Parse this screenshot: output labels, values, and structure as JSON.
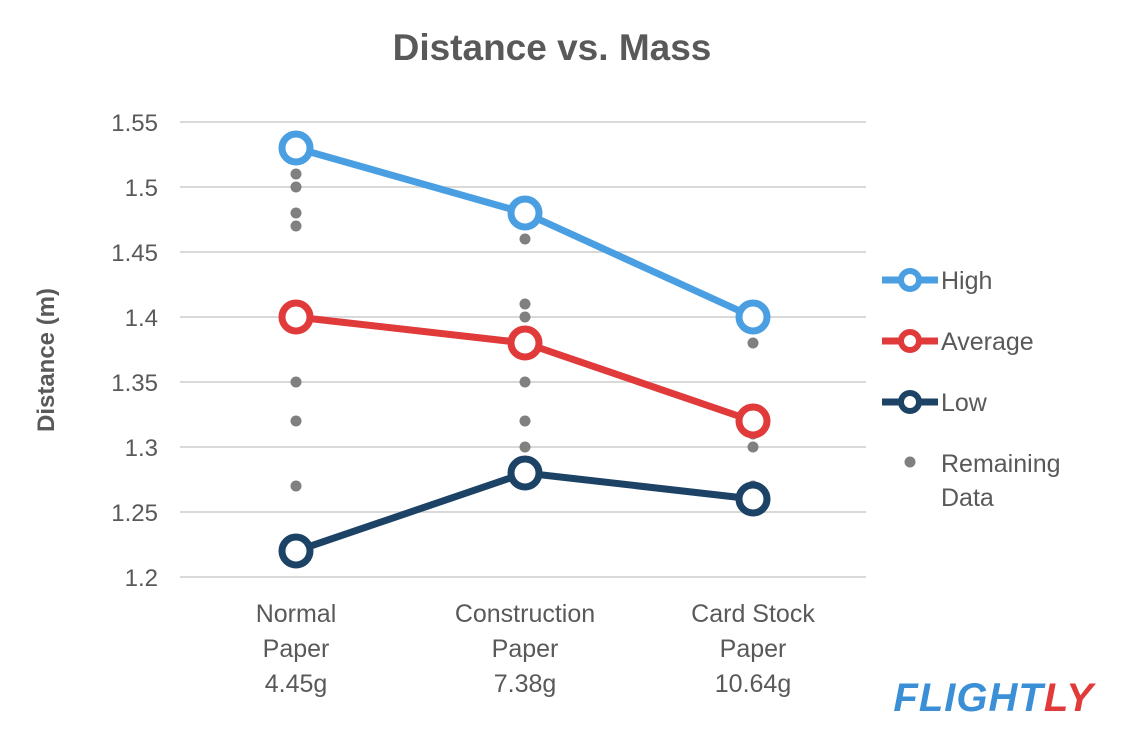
{
  "chart_data": {
    "type": "line",
    "title": "Distance vs. Mass",
    "xlabel": "",
    "ylabel": "Distance (m)",
    "ylim": [
      1.2,
      1.55
    ],
    "y_ticks": [
      "1.2",
      "1.25",
      "1.3",
      "1.35",
      "1.4",
      "1.45",
      "1.5",
      "1.55"
    ],
    "categories": [
      [
        "Normal",
        "Paper",
        "4.45g"
      ],
      [
        "Construction",
        "Paper",
        "7.38g"
      ],
      [
        "Card Stock",
        "Paper",
        "10.64g"
      ]
    ],
    "series": [
      {
        "name": "High",
        "color": "#4a9fe3",
        "values": [
          1.53,
          1.48,
          1.4
        ]
      },
      {
        "name": "Average",
        "color": "#e03a3a",
        "values": [
          1.4,
          1.38,
          1.32
        ]
      },
      {
        "name": "Low",
        "color": "#1c4266",
        "values": [
          1.22,
          1.28,
          1.26
        ]
      }
    ],
    "scatter": {
      "name": [
        "Remaining",
        "Data"
      ],
      "color": "#808080",
      "points": [
        [
          1.51,
          1.5,
          1.48,
          1.47,
          1.35,
          1.32,
          1.27
        ],
        [
          1.46,
          1.41,
          1.4,
          1.35,
          1.32,
          1.3
        ],
        [
          1.38,
          1.32,
          1.31,
          1.3,
          1.27
        ]
      ]
    },
    "grid": true,
    "legend_position": "right"
  },
  "brand": {
    "part1": "FLIGHT",
    "part2": "LY",
    "color1": "#3a8fd6",
    "color2": "#e03a3a"
  }
}
